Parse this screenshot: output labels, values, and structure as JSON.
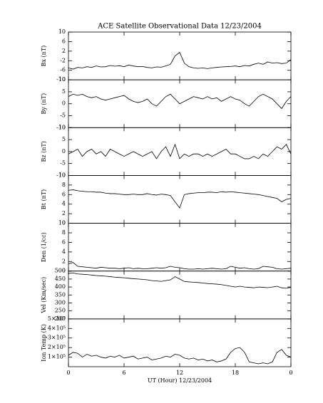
{
  "chart_data": [
    {
      "type": "line",
      "title": "ACE Satellite Observational Data   12/23/2004",
      "ylabel": "Bx (nT)",
      "x": [
        0,
        0.5,
        1,
        1.5,
        2,
        2.5,
        3,
        3.5,
        4,
        4.5,
        5,
        5.5,
        6,
        6.5,
        7,
        7.5,
        8,
        8.5,
        9,
        9.5,
        10,
        10.5,
        11,
        11.5,
        12,
        12.5,
        13,
        13.5,
        14,
        14.5,
        15,
        15.5,
        16,
        16.5,
        17,
        17.5,
        18,
        18.5,
        19,
        19.5,
        20,
        20.5,
        21,
        21.5,
        22,
        22.5,
        23,
        23.5,
        24
      ],
      "values": [
        -5,
        -5.5,
        -4.8,
        -5,
        -4.5,
        -4.8,
        -4.2,
        -4.6,
        -4.5,
        -4,
        -4.3,
        -4.1,
        -4.5,
        -3.8,
        -4.2,
        -4.5,
        -4.4,
        -4.8,
        -5,
        -4.6,
        -4.7,
        -4.2,
        -3.5,
        0,
        1.5,
        -3,
        -4.5,
        -5,
        -5.2,
        -5,
        -5.3,
        -5,
        -4.8,
        -4.6,
        -4.5,
        -4.4,
        -4.2,
        -4.5,
        -4,
        -4.2,
        -3.5,
        -3,
        -3.5,
        -2.5,
        -3,
        -2.8,
        -3.2,
        -3,
        -1.5
      ],
      "xlim": [
        0,
        24
      ],
      "ylim": [
        -10,
        10
      ],
      "yticks": [
        -10,
        -6,
        -2,
        2,
        6,
        10
      ],
      "color": "#000000"
    },
    {
      "type": "line",
      "ylabel": "By (nT)",
      "x": [
        0,
        0.5,
        1,
        1.5,
        2,
        2.5,
        3,
        3.5,
        4,
        4.5,
        5,
        5.5,
        6,
        6.5,
        7,
        7.5,
        8,
        8.5,
        9,
        9.5,
        10,
        10.5,
        11,
        11.5,
        12,
        12.5,
        13,
        13.5,
        14,
        14.5,
        15,
        15.5,
        16,
        16.5,
        17,
        17.5,
        18,
        18.5,
        19,
        19.5,
        20,
        20.5,
        21,
        21.5,
        22,
        22.5,
        23,
        23.5,
        24
      ],
      "values": [
        3,
        4,
        3.5,
        4,
        3,
        2.5,
        3,
        2,
        1.5,
        2,
        2.5,
        3,
        3.5,
        2,
        1,
        0.5,
        1,
        2,
        0,
        -1,
        1,
        3,
        4,
        2,
        0,
        1,
        2,
        3,
        2.5,
        2,
        3,
        2,
        2.5,
        1,
        2,
        3,
        2,
        1.5,
        0,
        -1,
        1,
        3,
        4,
        3,
        2,
        0,
        -2,
        1,
        3
      ],
      "xlim": [
        0,
        24
      ],
      "ylim": [
        -10,
        10
      ],
      "yticks": [
        -10,
        -5,
        0,
        5,
        10
      ],
      "color": "#000000"
    },
    {
      "type": "line",
      "ylabel": "Bz (nT)",
      "x": [
        0,
        0.5,
        1,
        1.5,
        2,
        2.5,
        3,
        3.5,
        4,
        4.5,
        5,
        5.5,
        6,
        6.5,
        7,
        7.5,
        8,
        8.5,
        9,
        9.5,
        10,
        10.5,
        11,
        11.5,
        12,
        12.5,
        13,
        13.5,
        14,
        14.5,
        15,
        15.5,
        16,
        16.5,
        17,
        17.5,
        18,
        18.5,
        19,
        19.5,
        20,
        20.5,
        21,
        21.5,
        22,
        22.5,
        23,
        23.5,
        24
      ],
      "values": [
        -1,
        0,
        1,
        -2,
        0,
        1,
        -1,
        0,
        -2,
        1,
        0,
        -1,
        -2,
        -1,
        0,
        -1,
        -2,
        -1,
        0,
        -3,
        0,
        2,
        -2,
        3,
        -3,
        -1,
        -2,
        -1,
        -1,
        -2,
        -1,
        -2,
        -1,
        0,
        1,
        -1,
        -1,
        -2,
        -3,
        -3,
        -2,
        -3,
        -1,
        -2,
        0,
        2,
        1,
        3,
        -1
      ],
      "xlim": [
        0,
        24
      ],
      "ylim": [
        -10,
        10
      ],
      "yticks": [
        -10,
        -5,
        0,
        5,
        10
      ],
      "color": "#000000"
    },
    {
      "type": "line",
      "ylabel": "Bt (nT)",
      "x": [
        0,
        0.5,
        1,
        1.5,
        2,
        2.5,
        3,
        3.5,
        4,
        4.5,
        5,
        5.5,
        6,
        6.5,
        7,
        7.5,
        8,
        8.5,
        9,
        9.5,
        10,
        10.5,
        11,
        11.5,
        12,
        12.5,
        13,
        13.5,
        14,
        14.5,
        15,
        15.5,
        16,
        16.5,
        17,
        17.5,
        18,
        18.5,
        19,
        19.5,
        20,
        20.5,
        21,
        21.5,
        22,
        22.5,
        23,
        23.5,
        24
      ],
      "values": [
        6.9,
        7,
        6.8,
        6.7,
        6.6,
        6.6,
        6.5,
        6.5,
        6.3,
        6.2,
        6.2,
        6.1,
        6,
        6,
        6.1,
        6,
        6,
        6.2,
        6,
        5.9,
        6.1,
        6,
        5.8,
        4.5,
        3.2,
        6,
        6.2,
        6.3,
        6.4,
        6.4,
        6.5,
        6.5,
        6.4,
        6.6,
        6.5,
        6.6,
        6.5,
        6.4,
        6.3,
        6.2,
        6.1,
        6,
        5.8,
        5.6,
        5.4,
        5.2,
        4.5,
        5,
        5.2
      ],
      "xlim": [
        0,
        24
      ],
      "ylim": [
        0,
        10
      ],
      "yticks": [
        0,
        2,
        4,
        6,
        8,
        10
      ],
      "color": "#000000"
    },
    {
      "type": "line",
      "ylabel": "Den (1/cc)",
      "x": [
        0,
        0.5,
        1,
        1.5,
        2,
        2.5,
        3,
        3.5,
        4,
        4.5,
        5,
        5.5,
        6,
        6.5,
        7,
        7.5,
        8,
        8.5,
        9,
        9.5,
        10,
        10.5,
        11,
        11.5,
        12,
        12.5,
        13,
        13.5,
        14,
        14.5,
        15,
        15.5,
        16,
        16.5,
        17,
        17.5,
        18,
        18.5,
        19,
        19.5,
        20,
        20.5,
        21,
        21.5,
        22,
        22.5,
        23,
        23.5,
        24
      ],
      "values": [
        1.5,
        1.8,
        1,
        0.9,
        0.8,
        0.7,
        0.6,
        0.8,
        0.7,
        0.6,
        0.6,
        0.5,
        0.6,
        0.7,
        0.5,
        0.6,
        0.5,
        0.5,
        0.6,
        0.7,
        0.6,
        0.7,
        1,
        0.8,
        0.7,
        0.5,
        0.4,
        0.4,
        0.5,
        0.4,
        0.5,
        0.6,
        0.5,
        0.4,
        0.5,
        1,
        0.8,
        0.6,
        0.7,
        0.5,
        0.4,
        0.5,
        1,
        0.9,
        0.8,
        0.5,
        0.4,
        0.5,
        0.6
      ],
      "xlim": [
        0,
        24
      ],
      "ylim": [
        0,
        10
      ],
      "yticks": [
        0,
        2,
        4,
        6,
        8,
        10
      ],
      "color": "#000000"
    },
    {
      "type": "line",
      "ylabel": "Vel (Km/sec)",
      "x": [
        0,
        0.5,
        1,
        1.5,
        2,
        2.5,
        3,
        3.5,
        4,
        4.5,
        5,
        5.5,
        6,
        6.5,
        7,
        7.5,
        8,
        8.5,
        9,
        9.5,
        10,
        10.5,
        11,
        11.5,
        12,
        12.5,
        13,
        13.5,
        14,
        14.5,
        15,
        15.5,
        16,
        16.5,
        17,
        17.5,
        18,
        18.5,
        19,
        19.5,
        20,
        20.5,
        21,
        21.5,
        22,
        22.5,
        23,
        23.5,
        24
      ],
      "values": [
        485,
        488,
        482,
        480,
        478,
        475,
        472,
        470,
        468,
        465,
        462,
        460,
        458,
        455,
        452,
        450,
        448,
        445,
        440,
        438,
        435,
        440,
        445,
        465,
        450,
        435,
        432,
        430,
        428,
        425,
        422,
        420,
        418,
        415,
        410,
        405,
        400,
        405,
        400,
        398,
        395,
        400,
        398,
        396,
        400,
        405,
        395,
        392,
        398
      ],
      "xlim": [
        0,
        24
      ],
      "ylim": [
        200,
        500
      ],
      "yticks": [
        200,
        250,
        300,
        350,
        400,
        450,
        500
      ],
      "color": "#000000"
    },
    {
      "type": "line",
      "ylabel": "Ion Temp (K)",
      "xlabel": "UT (Hour)  12/23/2004",
      "x": [
        0,
        0.5,
        1,
        1.5,
        2,
        2.5,
        3,
        3.5,
        4,
        4.5,
        5,
        5.5,
        6,
        6.5,
        7,
        7.5,
        8,
        8.5,
        9,
        9.5,
        10,
        10.5,
        11,
        11.5,
        12,
        12.5,
        13,
        13.5,
        14,
        14.5,
        15,
        15.5,
        16,
        16.5,
        17,
        17.5,
        18,
        18.5,
        19,
        19.5,
        20,
        20.5,
        21,
        21.5,
        22,
        22.5,
        23,
        23.5,
        24
      ],
      "values": [
        120000,
        150000,
        140000,
        100000,
        130000,
        110000,
        120000,
        100000,
        90000,
        110000,
        100000,
        120000,
        90000,
        100000,
        110000,
        80000,
        90000,
        100000,
        70000,
        80000,
        90000,
        110000,
        100000,
        130000,
        120000,
        90000,
        80000,
        90000,
        70000,
        80000,
        60000,
        70000,
        50000,
        60000,
        80000,
        150000,
        190000,
        200000,
        150000,
        50000,
        40000,
        30000,
        40000,
        30000,
        50000,
        150000,
        180000,
        120000,
        100000
      ],
      "xlim": [
        0,
        24
      ],
      "xticks": [
        0,
        6,
        12,
        18,
        {
          "value": 24,
          "label": "0"
        }
      ],
      "ylim": [
        0,
        500000
      ],
      "yticks": [
        {
          "value": 100000,
          "label": "1×10⁵"
        },
        {
          "value": 200000,
          "label": "2×10⁵"
        },
        {
          "value": 300000,
          "label": "3×10⁵"
        },
        {
          "value": 400000,
          "label": "4×10⁵"
        },
        {
          "value": 500000,
          "label": "5×10⁵"
        }
      ],
      "color": "#000000"
    }
  ]
}
